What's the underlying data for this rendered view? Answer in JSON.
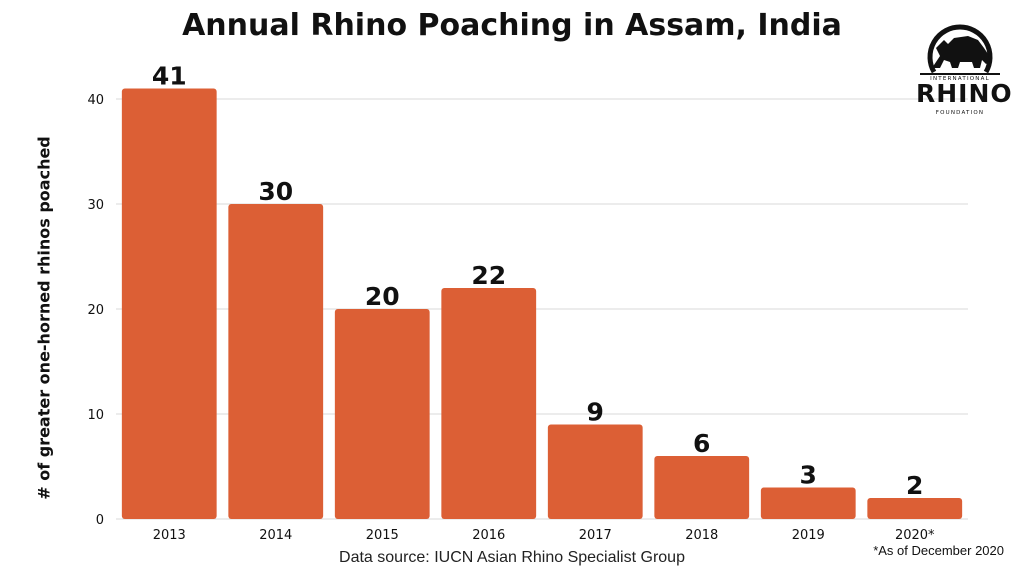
{
  "chart_data": {
    "type": "bar",
    "title": "Annual Rhino Poaching in Assam, India",
    "ylabel": "# of greater one-horned rhinos poached",
    "xlabel": "",
    "categories": [
      "2013",
      "2014",
      "2015",
      "2016",
      "2017",
      "2018",
      "2019",
      "2020*"
    ],
    "values": [
      41,
      30,
      20,
      22,
      9,
      6,
      3,
      2
    ],
    "data_labels": [
      "41",
      "30",
      "20",
      "22",
      "9",
      "6",
      "3",
      "2"
    ],
    "yticks": [
      "0",
      "10",
      "20",
      "30",
      "40"
    ],
    "ylim": [
      0,
      40
    ],
    "grid": true,
    "bar_color": "#dc5f35"
  },
  "source_text": "Data source: IUCN Asian Rhino Specialist Group",
  "footnote": "*As of December 2020",
  "logo": {
    "top_text": "INTERNATIONAL",
    "main_text": "RHINO",
    "bottom_text": "FOUNDATION",
    "icon": "rhino-icon"
  }
}
